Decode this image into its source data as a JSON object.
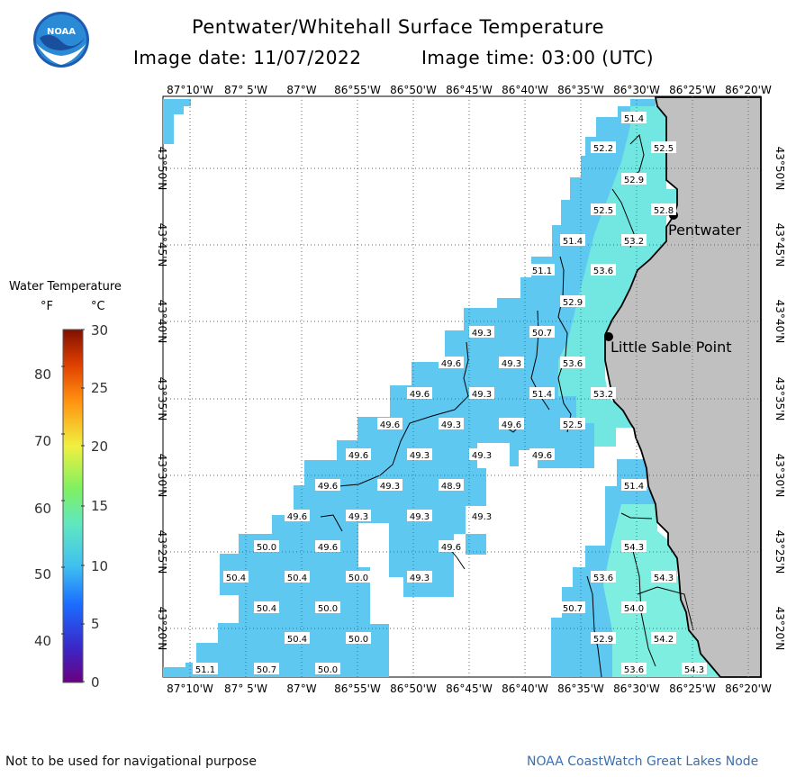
{
  "title": "Pentwater/Whitehall Surface Temperature",
  "image_date_label": "Image date: 11/07/2022",
  "image_time_label": "Image time: 03:00 (UTC)",
  "logo_text": "NOAA",
  "legend": {
    "title": "Water Temperature",
    "unit_f": "°F",
    "unit_c": "°C",
    "f_ticks": [
      "80",
      "70",
      "60",
      "50",
      "40"
    ],
    "c_ticks": [
      "30",
      "25",
      "20",
      "15",
      "10",
      "5",
      "0"
    ]
  },
  "lon_labels": [
    "87°10'W",
    "87° 5'W",
    "87°W",
    "86°55'W",
    "86°50'W",
    "86°45'W",
    "86°40'W",
    "86°35'W",
    "86°30'W",
    "86°25'W",
    "86°20'W"
  ],
  "lat_labels": [
    "43°50'N",
    "43°45'N",
    "43°40'N",
    "43°35'N",
    "43°30'N",
    "43°25'N",
    "43°20'N"
  ],
  "places": [
    "Pentwater",
    "Little Sable Point"
  ],
  "temps": [
    {
      "v": "51.4"
    },
    {
      "v": "52.2"
    },
    {
      "v": "52.5"
    },
    {
      "v": "52.9"
    },
    {
      "v": "52.5"
    },
    {
      "v": "52.8"
    },
    {
      "v": "51.4"
    },
    {
      "v": "53.2"
    },
    {
      "v": "51.1"
    },
    {
      "v": "53.6"
    },
    {
      "v": "52.9"
    },
    {
      "v": "49.3"
    },
    {
      "v": "50.7"
    },
    {
      "v": "49.6"
    },
    {
      "v": "49.3"
    },
    {
      "v": "53.6"
    },
    {
      "v": "49.6"
    },
    {
      "v": "49.3"
    },
    {
      "v": "51.4"
    },
    {
      "v": "53.2"
    },
    {
      "v": "49.6"
    },
    {
      "v": "49.3"
    },
    {
      "v": "49.6"
    },
    {
      "v": "52.5"
    },
    {
      "v": "49.6"
    },
    {
      "v": "49.3"
    },
    {
      "v": "49.3"
    },
    {
      "v": "49.6"
    },
    {
      "v": "51.4"
    },
    {
      "v": "49.6"
    },
    {
      "v": "49.3"
    },
    {
      "v": "48.9"
    },
    {
      "v": "49.6"
    },
    {
      "v": "49.3"
    },
    {
      "v": "49.3"
    },
    {
      "v": "49.3"
    },
    {
      "v": "54.3"
    },
    {
      "v": "50.0"
    },
    {
      "v": "49.6"
    },
    {
      "v": "49.6"
    },
    {
      "v": "50.4"
    },
    {
      "v": "50.4"
    },
    {
      "v": "50.0"
    },
    {
      "v": "49.3"
    },
    {
      "v": "53.6"
    },
    {
      "v": "54.3"
    },
    {
      "v": "50.4"
    },
    {
      "v": "50.0"
    },
    {
      "v": "50.7"
    },
    {
      "v": "54.0"
    },
    {
      "v": "50.4"
    },
    {
      "v": "50.0"
    },
    {
      "v": "52.9"
    },
    {
      "v": "54.2"
    },
    {
      "v": "51.1"
    },
    {
      "v": "50.7"
    },
    {
      "v": "50.0"
    },
    {
      "v": "53.6"
    },
    {
      "v": "54.3"
    }
  ],
  "footer_left": "Not to be used for navigational purpose",
  "footer_right": "NOAA CoastWatch Great Lakes Node",
  "colors": {
    "land": "#c0c0c0",
    "water_cool": "#5ec8f0",
    "water_warm": "#7deee0"
  }
}
